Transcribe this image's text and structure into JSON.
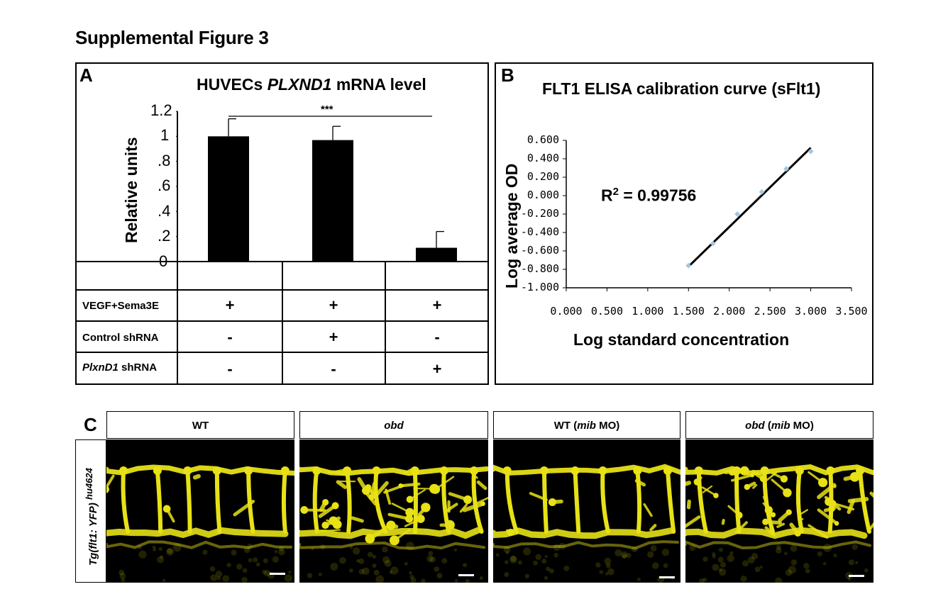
{
  "figure_title": "Supplemental Figure 3",
  "panel_a": {
    "label": "A",
    "title_prefix": "HUVECs ",
    "title_italic": "PLXND1",
    "title_suffix": " mRNA level",
    "significance": "***",
    "ytick_labels": [
      "1.2",
      "1",
      ".8",
      ".6",
      ".4",
      ".2",
      "0"
    ],
    "rows": [
      {
        "label_italic": "",
        "label": "VEGF+Sema3E",
        "values": [
          "+",
          "+",
          "+"
        ]
      },
      {
        "label_italic": "",
        "label": "Control shRNA",
        "values": [
          "-",
          "+",
          "-"
        ]
      },
      {
        "label_italic": "PlxnD1",
        "label": " shRNA",
        "values": [
          "-",
          "-",
          "+"
        ]
      }
    ]
  },
  "panel_b": {
    "label": "B",
    "r2_text": "R",
    "r2_sup": "2",
    "r2_value": " = 0.99756",
    "ytick_labels": [
      "0.600",
      "0.400",
      "0.200",
      "0.000",
      "-0.200",
      "-0.400",
      "-0.600",
      "-0.800",
      "-1.000"
    ],
    "xtick_labels": [
      "0.000",
      "0.500",
      "1.000",
      "1.500",
      "2.000",
      "2.500",
      "3.000",
      "3.500"
    ]
  },
  "panel_c": {
    "label": "C",
    "side_label": "Tg(flt1: YFP)",
    "side_sup": "hu4624",
    "images": [
      {
        "italic": "",
        "text": "WT",
        "suffix": ""
      },
      {
        "italic": "obd",
        "text": "",
        "suffix": ""
      },
      {
        "italic": "",
        "text": "WT (",
        "mid_italic": "mib",
        "suffix": " MO)"
      },
      {
        "italic": "obd",
        "text": " (",
        "mid_italic": "mib",
        "suffix": " MO)"
      }
    ]
  },
  "colors": {
    "marker": "#9ec7e6",
    "fluor": "#e7e116",
    "bar": "#000000"
  },
  "chart_data": [
    {
      "type": "bar",
      "title": "HUVECs PLXND1 mRNA level",
      "ylabel": "Relative units",
      "xlabel": "",
      "ylim": [
        0,
        1.2
      ],
      "categories": [
        "VEGF+Sema3E / Control shRNA - / PlxnD1 shRNA -",
        "VEGF+Sema3E / Control shRNA + / PlxnD1 shRNA -",
        "VEGF+Sema3E / Control shRNA - / PlxnD1 shRNA +"
      ],
      "values": [
        1.0,
        0.97,
        0.11
      ],
      "error": [
        0.14,
        0.11,
        0.13
      ],
      "annotation": "***",
      "grid": false
    },
    {
      "type": "scatter",
      "title": "FLT1 ELISA calibration curve (sFlt1)",
      "xlabel": "Log standard concentration",
      "ylabel": "Log average OD",
      "xlim": [
        0,
        3.5
      ],
      "ylim": [
        -1.0,
        0.6
      ],
      "points": [
        {
          "x": 1.5,
          "y": -0.76
        },
        {
          "x": 1.8,
          "y": -0.52
        },
        {
          "x": 2.1,
          "y": -0.2
        },
        {
          "x": 2.4,
          "y": 0.04
        },
        {
          "x": 2.7,
          "y": 0.29
        },
        {
          "x": 3.0,
          "y": 0.48
        }
      ],
      "fit_line": {
        "x": [
          1.5,
          3.0
        ],
        "y": [
          -0.77,
          0.52
        ]
      },
      "annotation": "R2 = 0.99756",
      "grid": false
    }
  ]
}
